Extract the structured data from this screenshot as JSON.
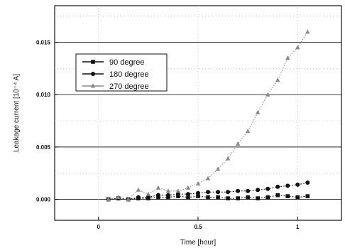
{
  "chart_data": {
    "type": "line",
    "xlabel": "Time [hour]",
    "ylabel": "Leakage current [10⁻⁴ A]",
    "xlim": [
      -0.22,
      1.22
    ],
    "ylim": [
      -0.002,
      0.0185
    ],
    "xticks": [
      0,
      0.5,
      1
    ],
    "xtick_labels": [
      "0",
      "0.5",
      "1"
    ],
    "yticks": [
      0.0,
      0.005,
      0.01,
      0.015
    ],
    "ytick_labels": [
      "0.000",
      "0.005",
      "0.010",
      "0.015"
    ],
    "grid": true,
    "legend_position": "upper-left",
    "series": [
      {
        "name": "90 degree",
        "marker": "square",
        "color": "#111111",
        "x": [
          0.05,
          0.1,
          0.15,
          0.2,
          0.25,
          0.3,
          0.35,
          0.4,
          0.45,
          0.5,
          0.55,
          0.6,
          0.65,
          0.7,
          0.75,
          0.8,
          0.85,
          0.9,
          0.95,
          1.0,
          1.05
        ],
        "y": [
          0.0,
          0.0001,
          0.0,
          0.0001,
          0.0001,
          0.0002,
          0.0002,
          0.0003,
          0.0002,
          0.0003,
          0.0002,
          0.0002,
          0.0001,
          0.0001,
          0.0002,
          0.0001,
          0.0002,
          0.0004,
          0.0003,
          0.0002,
          0.0003
        ]
      },
      {
        "name": "180 degree",
        "marker": "circle",
        "color": "#111111",
        "x": [
          0.05,
          0.1,
          0.15,
          0.2,
          0.25,
          0.3,
          0.35,
          0.4,
          0.45,
          0.5,
          0.55,
          0.6,
          0.65,
          0.7,
          0.75,
          0.8,
          0.85,
          0.9,
          0.95,
          1.0,
          1.05
        ],
        "y": [
          0.0,
          0.0001,
          0.0,
          0.0002,
          0.0002,
          0.0004,
          0.0004,
          0.0005,
          0.0005,
          0.0006,
          0.0007,
          0.0007,
          0.0007,
          0.0008,
          0.0008,
          0.0009,
          0.001,
          0.0012,
          0.0013,
          0.0014,
          0.0016
        ]
      },
      {
        "name": "270 degree",
        "marker": "triangle",
        "color": "#888888",
        "x": [
          0.05,
          0.1,
          0.15,
          0.2,
          0.25,
          0.3,
          0.35,
          0.4,
          0.45,
          0.5,
          0.55,
          0.6,
          0.65,
          0.7,
          0.75,
          0.8,
          0.85,
          0.9,
          0.95,
          1.0,
          1.05
        ],
        "y": [
          0.0,
          0.0002,
          0.0,
          0.0009,
          0.0005,
          0.0011,
          0.0008,
          0.0008,
          0.0011,
          0.0015,
          0.002,
          0.0029,
          0.0039,
          0.0053,
          0.0065,
          0.0083,
          0.01,
          0.0114,
          0.0135,
          0.0145,
          0.016
        ]
      }
    ]
  }
}
